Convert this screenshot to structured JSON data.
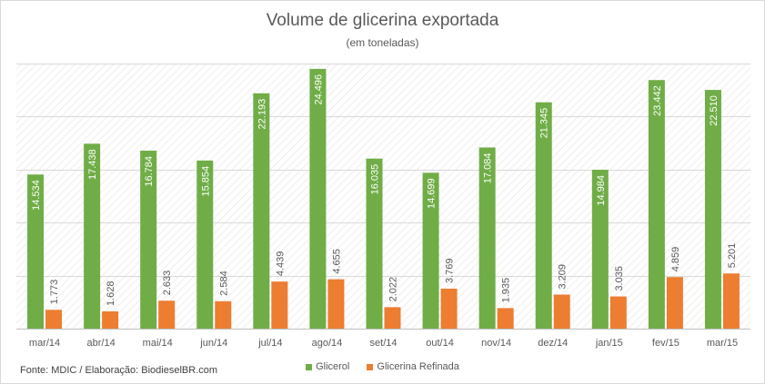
{
  "title": "Volume de glicerina exportada",
  "subtitle": "(em toneladas)",
  "source": "Fonte: MDIC / Elaboração: BiodieselBR.com",
  "colors": {
    "glicerol": "#70ad47",
    "refinada": "#ed7d31",
    "grid": "#d9d9d9",
    "text": "#595959"
  },
  "chart_data": {
    "type": "bar",
    "title": "Volume de glicerina exportada",
    "subtitle": "(em toneladas)",
    "categories": [
      "mar/14",
      "abr/14",
      "mai/14",
      "jun/14",
      "jul/14",
      "ago/14",
      "set/14",
      "out/14",
      "nov/14",
      "dez/14",
      "jan/15",
      "fev/15",
      "mar/15"
    ],
    "series": [
      {
        "name": "Glicerol",
        "color": "#70ad47",
        "values": [
          14534,
          17438,
          16784,
          15854,
          22193,
          24496,
          16035,
          14699,
          17084,
          21345,
          14984,
          23442,
          22510
        ],
        "labels": [
          "14.534",
          "17.438",
          "16.784",
          "15.854",
          "22.193",
          "24.496",
          "16.035",
          "14.699",
          "17.084",
          "21.345",
          "14.984",
          "23.442",
          "22.510"
        ]
      },
      {
        "name": "Glicerina Refinada",
        "color": "#ed7d31",
        "values": [
          1773,
          1628,
          2633,
          2584,
          4439,
          4655,
          2022,
          3769,
          1935,
          3209,
          3035,
          4859,
          5201
        ],
        "labels": [
          "1.773",
          "1.628",
          "2.633",
          "2.584",
          "4.439",
          "4.655",
          "2.022",
          "3.769",
          "1.935",
          "3.209",
          "3.035",
          "4.859",
          "5.201"
        ]
      }
    ],
    "ylim": [
      0,
      25000
    ],
    "grid": true,
    "legend": "bottom"
  }
}
